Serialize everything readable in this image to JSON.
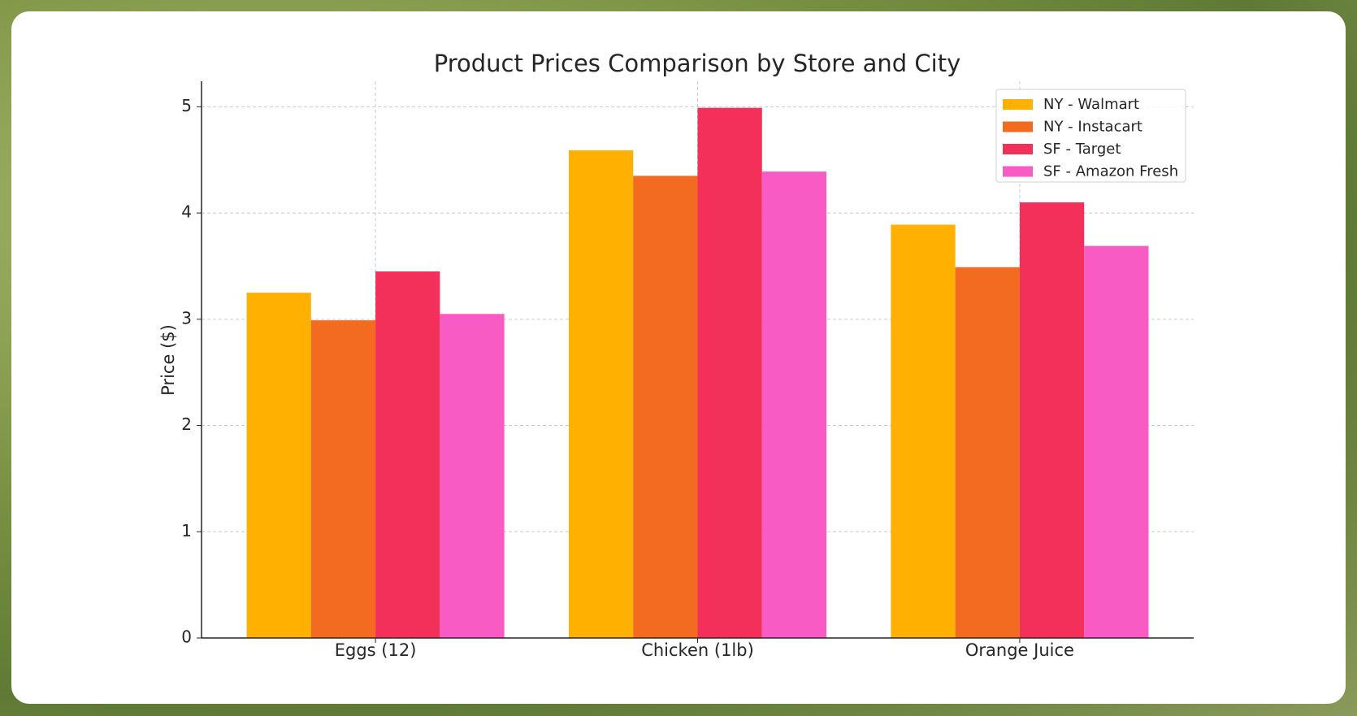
{
  "chart_data": {
    "type": "bar",
    "title": "Product Prices Comparison by Store and City",
    "y_label": "Price ($)",
    "categories": [
      "Eggs (12)",
      "Chicken (1lb)",
      "Orange Juice"
    ],
    "series": [
      {
        "name": "NY - Walmart",
        "color": "#ffb000",
        "values": [
          3.25,
          4.59,
          3.89
        ]
      },
      {
        "name": "NY - Instacart",
        "color": "#f26b21",
        "values": [
          2.99,
          4.35,
          3.49
        ]
      },
      {
        "name": "SF - Target",
        "color": "#f2305a",
        "values": [
          3.45,
          4.99,
          4.1
        ]
      },
      {
        "name": "SF - Amazon Fresh",
        "color": "#f95bc4",
        "values": [
          3.05,
          4.39,
          3.69
        ]
      }
    ],
    "ylim": [
      0,
      5.24
    ],
    "yticks": [
      0,
      1,
      2,
      3,
      4,
      5
    ],
    "grid": true,
    "legend": "upper right"
  }
}
